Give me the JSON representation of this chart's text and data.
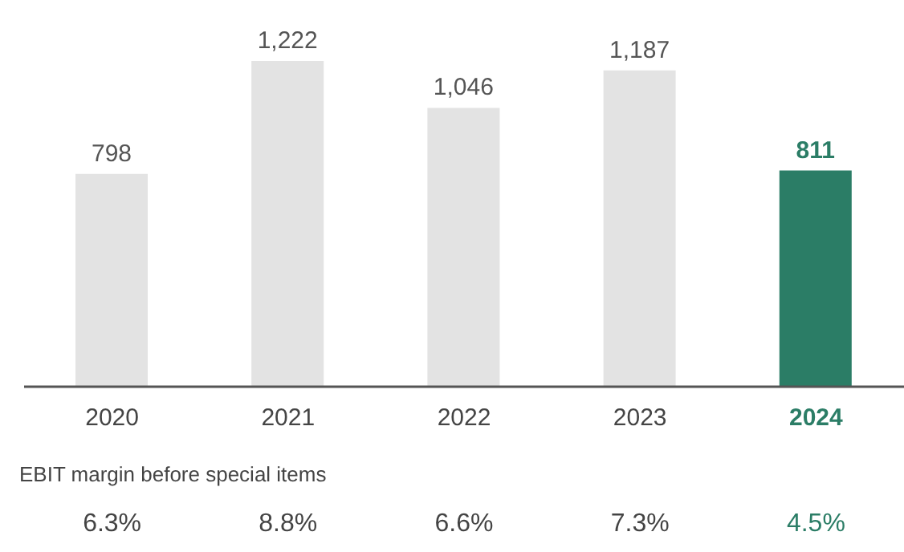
{
  "chart_data": {
    "type": "bar",
    "categories": [
      "2020",
      "2021",
      "2022",
      "2023",
      "2024"
    ],
    "values": [
      798,
      1222,
      1046,
      1187,
      811
    ],
    "colors": [
      "#e3e3e3",
      "#e3e3e3",
      "#e3e3e3",
      "#e3e3e3",
      "#2b7d66"
    ],
    "value_labels": [
      "798",
      "1,222",
      "1,046",
      "1,187",
      "811"
    ],
    "grid": false,
    "legend": false,
    "annotations": [
      "EBIT margin before special items",
      "6.3%",
      "8.8%",
      "6.6%",
      "7.3%",
      "4.5%"
    ]
  }
}
